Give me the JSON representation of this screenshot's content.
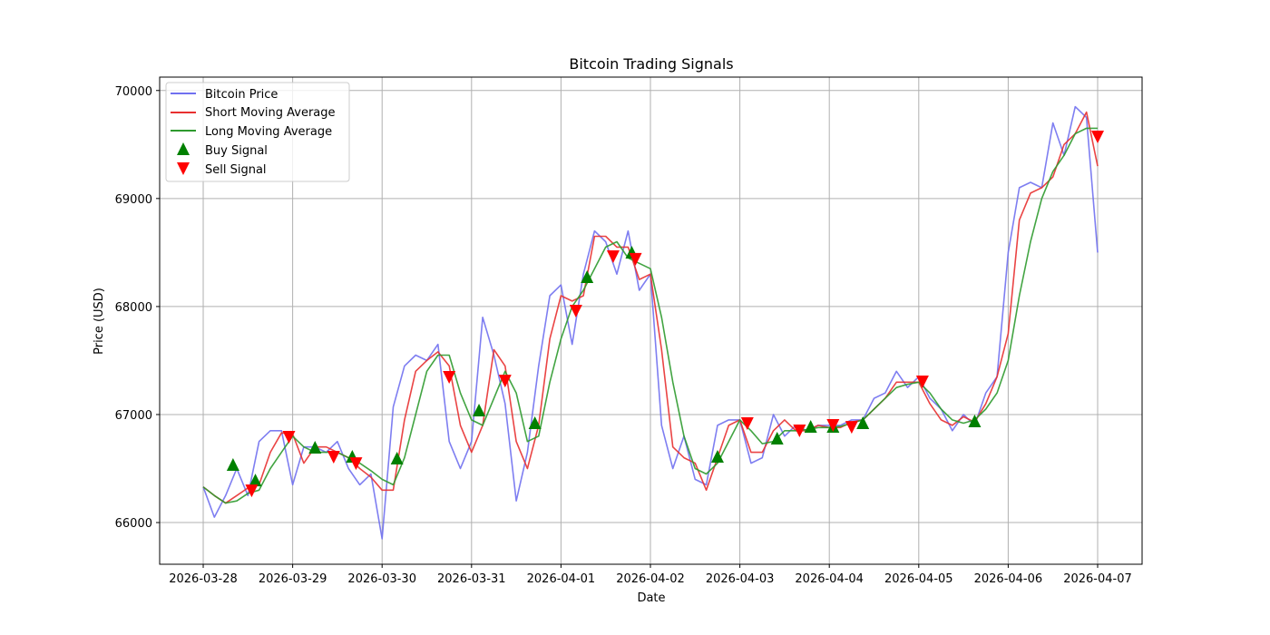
{
  "chart_data": {
    "type": "line",
    "title": "Bitcoin Trading Signals",
    "xlabel": "Date",
    "ylabel": "Price (USD)",
    "x_start": "2026-03-28",
    "x_step_hours": 3,
    "xlim_days": [
      -0.487,
      10.497
    ],
    "ylim": [
      65614,
      70124
    ],
    "grid": true,
    "legend_position": "top-left",
    "x_tick_labels": [
      "2026-03-28",
      "2026-03-29",
      "2026-03-30",
      "2026-03-31",
      "2026-04-01",
      "2026-04-02",
      "2026-04-03",
      "2026-04-04",
      "2026-04-05",
      "2026-04-06",
      "2026-04-07"
    ],
    "y_ticks": [
      66000,
      67000,
      68000,
      69000,
      70000
    ],
    "y_tick_labels": [
      "66000",
      "67000",
      "68000",
      "69000",
      "70000"
    ],
    "series": [
      {
        "name": "Bitcoin Price",
        "color": "#7070f0",
        "values": [
          66330,
          66050,
          66250,
          66500,
          66250,
          66750,
          66850,
          66850,
          66350,
          66700,
          66700,
          66650,
          66750,
          66500,
          66350,
          66450,
          65850,
          67070,
          67450,
          67550,
          67500,
          67650,
          66750,
          66500,
          66750,
          67900,
          67550,
          67100,
          66200,
          66650,
          67450,
          68100,
          68200,
          67650,
          68300,
          68700,
          68600,
          68300,
          68700,
          68150,
          68300,
          66900,
          66500,
          66800,
          66400,
          66350,
          66900,
          66950,
          66950,
          66550,
          66600,
          67000,
          66800,
          66900,
          66850,
          66900,
          66900,
          66900,
          66950,
          66950,
          67150,
          67200,
          67400,
          67250,
          67350,
          67150,
          67050,
          66850,
          67000,
          66900,
          67200,
          67350,
          68500,
          69100,
          69150,
          69100,
          69700,
          69400,
          69850,
          69750,
          68500
        ]
      },
      {
        "name": "Short Moving Average",
        "color": "#e83030",
        "values": [
          66330,
          66250,
          66180,
          66250,
          66320,
          66350,
          66650,
          66830,
          66820,
          66550,
          66700,
          66700,
          66650,
          66600,
          66500,
          66420,
          66300,
          66300,
          66950,
          67400,
          67500,
          67580,
          67450,
          66900,
          66650,
          66900,
          67600,
          67450,
          66750,
          66500,
          66900,
          67700,
          68100,
          68050,
          68100,
          68650,
          68650,
          68550,
          68550,
          68250,
          68300,
          67600,
          66700,
          66600,
          66550,
          66300,
          66600,
          66900,
          66950,
          66650,
          66650,
          66850,
          66950,
          66850,
          66850,
          66900,
          66880,
          66880,
          66930,
          66950,
          67050,
          67150,
          67300,
          67300,
          67300,
          67100,
          66950,
          66900,
          66980,
          66930,
          67100,
          67350,
          67750,
          68800,
          69050,
          69100,
          69200,
          69500,
          69600,
          69800,
          69300
        ]
      },
      {
        "name": "Long Moving Average",
        "color": "#2e9a2e",
        "values": [
          66330,
          66250,
          66180,
          66200,
          66270,
          66300,
          66500,
          66650,
          66800,
          66700,
          66650,
          66650,
          66650,
          66600,
          66550,
          66480,
          66400,
          66350,
          66600,
          67000,
          67400,
          67550,
          67550,
          67200,
          66950,
          66900,
          67150,
          67400,
          67200,
          66750,
          66800,
          67300,
          67700,
          68000,
          68150,
          68350,
          68550,
          68600,
          68450,
          68400,
          68350,
          67900,
          67300,
          66800,
          66500,
          66450,
          66550,
          66750,
          66950,
          66850,
          66730,
          66750,
          66850,
          66850,
          66860,
          66880,
          66880,
          66890,
          66920,
          66950,
          67050,
          67150,
          67250,
          67280,
          67300,
          67200,
          67050,
          66950,
          66920,
          66950,
          67050,
          67200,
          67500,
          68100,
          68600,
          69000,
          69250,
          69400,
          69600,
          69650,
          69650
        ]
      }
    ],
    "buy_signals": {
      "name": "Buy Signal",
      "color": "#008000",
      "hours": [
        8,
        14,
        30,
        40,
        52,
        74,
        89,
        103,
        115,
        138,
        154,
        163,
        169,
        177,
        207
      ],
      "values": [
        66529,
        66386,
        66689,
        66605,
        66588,
        67033,
        66916,
        68268,
        68495,
        66605,
        66773,
        66882,
        66882,
        66916,
        66933
      ]
    },
    "sell_signals": {
      "name": "Sell Signal",
      "color": "#ff0000",
      "hours": [
        13,
        23,
        35,
        41,
        66,
        81,
        100,
        110,
        116,
        146,
        160,
        169,
        174,
        193,
        240
      ],
      "values": [
        66302,
        66798,
        66613,
        66554,
        67352,
        67318,
        67966,
        68470,
        68445,
        66924,
        66857,
        66907,
        66890,
        67310,
        69578
      ]
    }
  }
}
